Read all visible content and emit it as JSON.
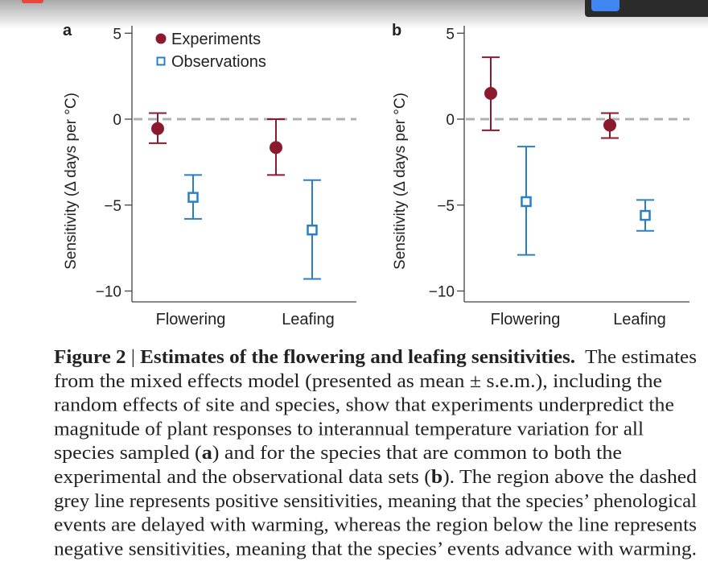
{
  "colors": {
    "experiments": "#8b1a2f",
    "observations": "#2a7fc4",
    "zero_line": "#b0b0b0",
    "axis": "#444444"
  },
  "chart_data": [
    {
      "type": "scatter",
      "panel_label": "a",
      "ylabel": "Sensitivity (Δ days per °C)",
      "ylim": [
        -11,
        5.5
      ],
      "yticks": [
        5,
        0,
        -5,
        -10
      ],
      "ytick_labels": [
        "5",
        "0",
        "−5",
        "−10"
      ],
      "categories": [
        "Flowering",
        "Leafing"
      ],
      "reference_line": {
        "y": 0,
        "style": "dashed"
      },
      "legend": {
        "placement": "top-left",
        "entries": [
          "Experiments",
          "Observations"
        ]
      },
      "series": [
        {
          "name": "Experiments",
          "marker": "filled-circle",
          "values": [
            -0.55,
            -1.65
          ],
          "err_low": [
            -1.4,
            -3.25
          ],
          "err_high": [
            0.35,
            0.0
          ]
        },
        {
          "name": "Observations",
          "marker": "open-square",
          "values": [
            -4.55,
            -6.45
          ],
          "err_low": [
            -5.8,
            -9.3
          ],
          "err_high": [
            -3.25,
            -3.55
          ]
        }
      ]
    },
    {
      "type": "scatter",
      "panel_label": "b",
      "ylabel": "Sensitivity (Δ days per °C)",
      "ylim": [
        -11,
        5.5
      ],
      "yticks": [
        5,
        0,
        -5,
        -10
      ],
      "ytick_labels": [
        "5",
        "0",
        "−5",
        "−10"
      ],
      "categories": [
        "Flowering",
        "Leafing"
      ],
      "reference_line": {
        "y": 0,
        "style": "dashed"
      },
      "series": [
        {
          "name": "Experiments",
          "marker": "filled-circle",
          "values": [
            1.5,
            -0.35
          ],
          "err_low": [
            -0.65,
            -1.1
          ],
          "err_high": [
            3.6,
            0.35
          ]
        },
        {
          "name": "Observations",
          "marker": "open-square",
          "values": [
            -4.8,
            -5.6
          ],
          "err_low": [
            -7.9,
            -6.5
          ],
          "err_high": [
            -1.6,
            -4.7
          ]
        }
      ]
    }
  ],
  "caption": {
    "lines": [
      [
        {
          "t": "Figure 2",
          "b": true
        },
        {
          "t": " | ",
          "b": false
        },
        {
          "t": "Estimates of the flowering and leafing sensitivities.",
          "b": true
        },
        {
          "t": "  The estimates",
          "b": false
        }
      ],
      [
        {
          "t": "from the mixed effects model (presented as mean ± s.e.m.), including the",
          "b": false
        }
      ],
      [
        {
          "t": "random effects of site and species, show that experiments underpredict the",
          "b": false
        }
      ],
      [
        {
          "t": "magnitude of plant responses to interannual temperature variation for all",
          "b": false
        }
      ],
      [
        {
          "t": "species sampled (",
          "b": false
        },
        {
          "t": "a",
          "b": true
        },
        {
          "t": ") and for the species that are common to both the",
          "b": false
        }
      ],
      [
        {
          "t": "experimental and the observational data sets (",
          "b": false
        },
        {
          "t": "b",
          "b": true
        },
        {
          "t": "). The region above the dashed",
          "b": false
        }
      ],
      [
        {
          "t": "grey line represents positive sensitivities, meaning that the species’ phenological",
          "b": false
        }
      ],
      [
        {
          "t": "events are delayed with warming, whereas the region below the line represents",
          "b": false
        }
      ],
      [
        {
          "t": "negative sensitivities, meaning that the species’ events advance with warming.",
          "b": false
        }
      ]
    ]
  }
}
